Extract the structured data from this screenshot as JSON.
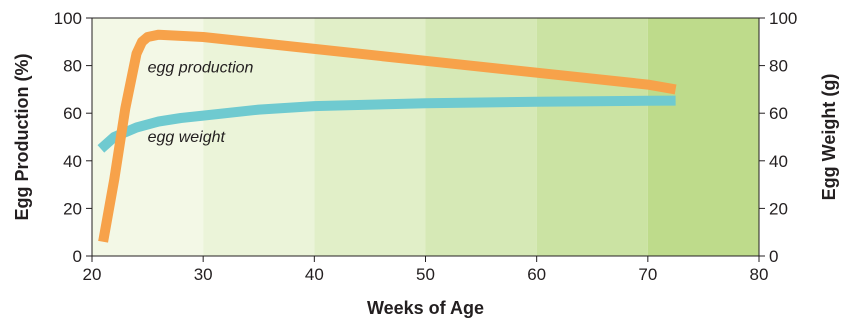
{
  "chart_data": {
    "type": "line",
    "xlabel": "Weeks of Age",
    "ylabel_left": "Egg Production (%)",
    "ylabel_right": "Egg Weight (g)",
    "xlim": [
      20,
      80
    ],
    "ylim_left": [
      0,
      100
    ],
    "ylim_right": [
      0,
      100
    ],
    "x_ticks": [
      "20",
      "30",
      "40",
      "50",
      "60",
      "70",
      "80"
    ],
    "y_ticks_left": [
      "0",
      "20",
      "40",
      "60",
      "80",
      "100"
    ],
    "y_ticks_right": [
      "0",
      "20",
      "40",
      "60",
      "80",
      "100"
    ],
    "grid": false,
    "background_bands": [
      {
        "from": 20,
        "to": 30,
        "color": "#f3f8e6"
      },
      {
        "from": 30,
        "to": 40,
        "color": "#ebf4d9"
      },
      {
        "from": 40,
        "to": 50,
        "color": "#e1efc8"
      },
      {
        "from": 50,
        "to": 60,
        "color": "#d6e9b6"
      },
      {
        "from": 60,
        "to": 70,
        "color": "#cbe3a3"
      },
      {
        "from": 70,
        "to": 80,
        "color": "#bedb8b"
      }
    ],
    "series": [
      {
        "name": "egg production",
        "axis": "left",
        "color": "#f7a24a",
        "x": [
          21,
          22,
          23,
          24,
          24.5,
          25,
          26,
          30,
          40,
          50,
          60,
          70,
          72.5
        ],
        "y": [
          6,
          32,
          62,
          85,
          90,
          92,
          93,
          92,
          87,
          82,
          77,
          72,
          70
        ]
      },
      {
        "name": "egg weight",
        "axis": "right",
        "color": "#6fcad0",
        "x": [
          20.8,
          22,
          24,
          26,
          28,
          30,
          35,
          40,
          50,
          60,
          70,
          72.5
        ],
        "y": [
          45,
          50,
          54,
          56.5,
          58,
          59,
          61.5,
          63,
          64.2,
          64.8,
          65.2,
          65.3
        ]
      }
    ],
    "series_label_positions": {
      "egg production": {
        "x": 25,
        "y": 77
      },
      "egg weight": {
        "x": 25,
        "y": 48
      }
    }
  }
}
